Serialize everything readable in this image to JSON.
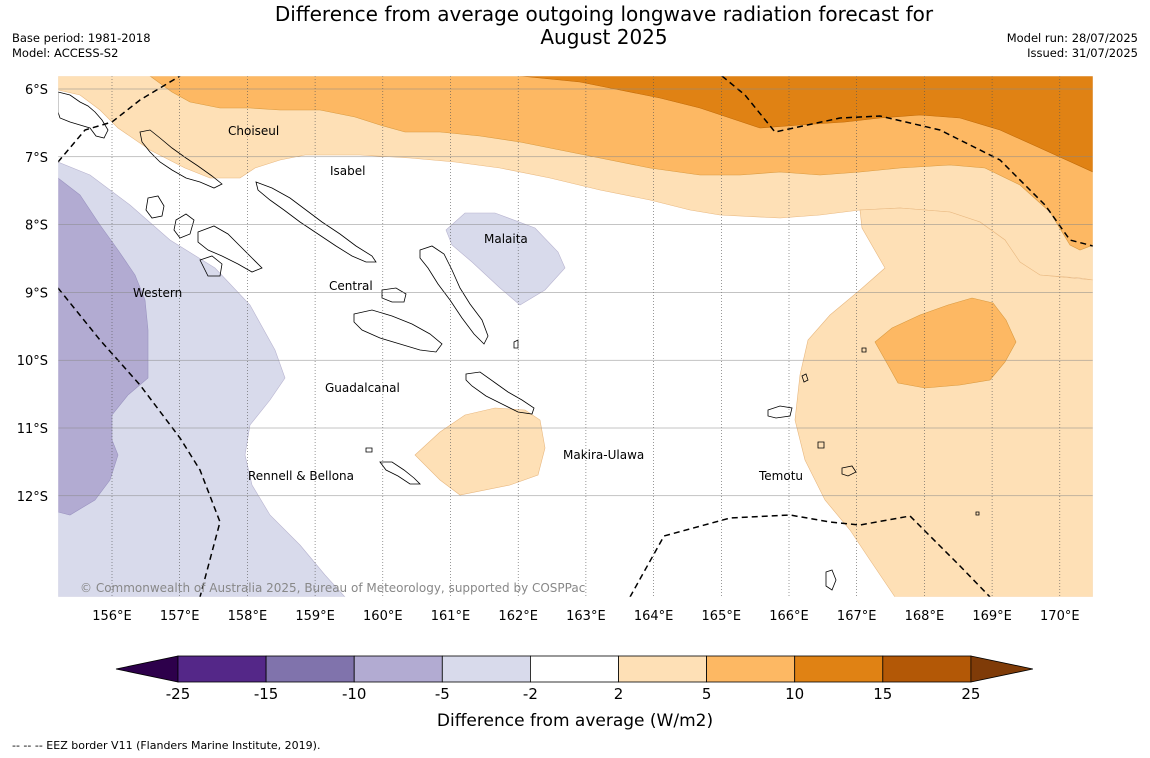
{
  "header": {
    "title_line1": "Difference from average outgoing longwave radiation forecast for",
    "title_line2": "August 2025",
    "base_period": "Base period: 1981-2018",
    "model": "Model: ACCESS-S2",
    "model_run": "Model run: 28/07/2025",
    "issued": "Issued: 31/07/2025"
  },
  "map": {
    "lat_labels": [
      "6°S",
      "7°S",
      "8°S",
      "9°S",
      "10°S",
      "11°S",
      "12°S"
    ],
    "lon_labels": [
      "156°E",
      "157°E",
      "158°E",
      "159°E",
      "160°E",
      "161°E",
      "162°E",
      "163°E",
      "164°E",
      "165°E",
      "166°E",
      "167°E",
      "168°E",
      "169°E",
      "170°E"
    ],
    "regions": [
      "Choiseul",
      "Isabel",
      "Malaita",
      "Western",
      "Central",
      "Guadalcanal",
      "Makira-Ulawa",
      "Rennell & Bellona",
      "Temotu"
    ],
    "copyright": "© Commonwealth of Australia 2025, Bureau of Meteorology, supported by COSPPac"
  },
  "colorbar": {
    "ticks": [
      "-25",
      "-15",
      "-10",
      "-5",
      "-2",
      "2",
      "5",
      "10",
      "15",
      "25"
    ],
    "colors": [
      "#542788",
      "#8073ac",
      "#b2abd2",
      "#d8daeb",
      "#ffffff",
      "#fee0b6",
      "#fdb863",
      "#e08214",
      "#b35806"
    ],
    "extend_low_color": "#2d004b",
    "extend_high_color": "#7f3b08",
    "label": "Difference from average (W/m2)"
  },
  "footnote": "--  --  -- EEZ border V11 (Flanders Marine Institute, 2019)."
}
